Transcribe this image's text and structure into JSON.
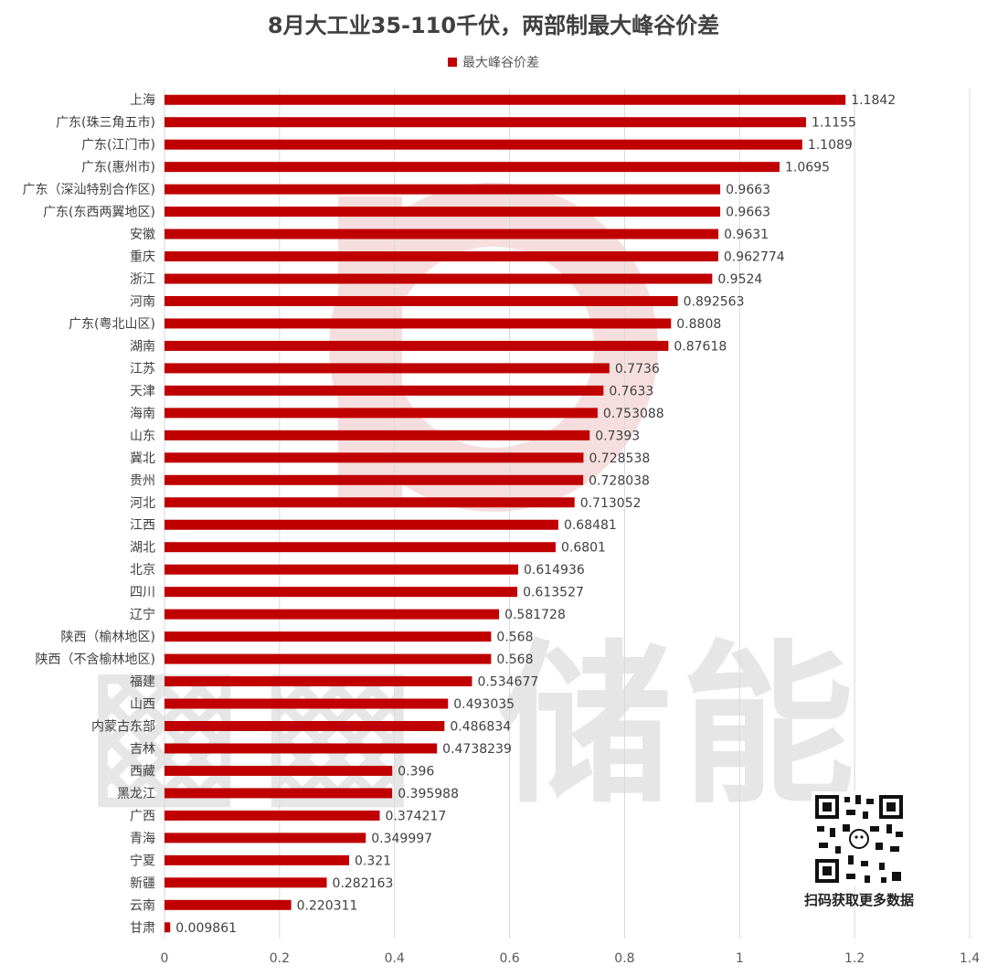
{
  "title": "8月大工业35-110千伏，两部制最大峰谷价差",
  "legend_label": "最大峰谷价差",
  "watermark_text": "储能",
  "qr_caption": "扫码获取更多数据",
  "colors": {
    "bar": "#c00000",
    "grid": "#d9d9d9",
    "watermark_red": "#f6dede"
  },
  "chart_data": {
    "type": "bar",
    "orientation": "horizontal",
    "title": "8月大工业35-110千伏，两部制最大峰谷价差",
    "legend": {
      "position": "top",
      "entries": [
        "最大峰谷价差"
      ]
    },
    "xlim": [
      0,
      1.4
    ],
    "x_ticks": [
      "0",
      "0.2",
      "0.4",
      "0.6",
      "0.8",
      "1",
      "1.2",
      "1.4"
    ],
    "grid": true,
    "series": [
      {
        "name": "最大峰谷价差",
        "categories": [
          "上海",
          "广东(珠三角五市)",
          "广东(江门市)",
          "广东(惠州市)",
          "广东（深汕特别合作区)",
          "广东(东西两翼地区)",
          "安徽",
          "重庆",
          "浙江",
          "河南",
          "广东(粤北山区)",
          "湖南",
          "江苏",
          "天津",
          "海南",
          "山东",
          "冀北",
          "贵州",
          "河北",
          "江西",
          "湖北",
          "北京",
          "四川",
          "辽宁",
          "陕西（榆林地区)",
          "陕西（不含榆林地区)",
          "福建",
          "山西",
          "内蒙古东部",
          "吉林",
          "西藏",
          "黑龙江",
          "广西",
          "青海",
          "宁夏",
          "新疆",
          "云南",
          "甘肃"
        ],
        "values": [
          1.1842,
          1.1155,
          1.1089,
          1.0695,
          0.9663,
          0.9663,
          0.9631,
          0.962774,
          0.9524,
          0.892563,
          0.8808,
          0.87618,
          0.7736,
          0.7633,
          0.753088,
          0.7393,
          0.728538,
          0.728038,
          0.713052,
          0.68481,
          0.6801,
          0.614936,
          0.613527,
          0.581728,
          0.568,
          0.568,
          0.534677,
          0.493035,
          0.486834,
          0.4738239,
          0.396,
          0.395988,
          0.374217,
          0.349997,
          0.321,
          0.282163,
          0.220311,
          0.009861
        ],
        "labels": [
          "1.1842",
          "1.1155",
          "1.1089",
          "1.0695",
          "0.9663",
          "0.9663",
          "0.9631",
          "0.962774",
          "0.9524",
          "0.892563",
          "0.8808",
          "0.87618",
          "0.7736",
          "0.7633",
          "0.753088",
          "0.7393",
          "0.728538",
          "0.728038",
          "0.713052",
          "0.68481",
          "0.6801",
          "0.614936",
          "0.613527",
          "0.581728",
          "0.568",
          "0.568",
          "0.534677",
          "0.493035",
          "0.486834",
          "0.4738239",
          "0.396",
          "0.395988",
          "0.374217",
          "0.349997",
          "0.321",
          "0.282163",
          "0.220311",
          "0.009861"
        ]
      }
    ]
  }
}
